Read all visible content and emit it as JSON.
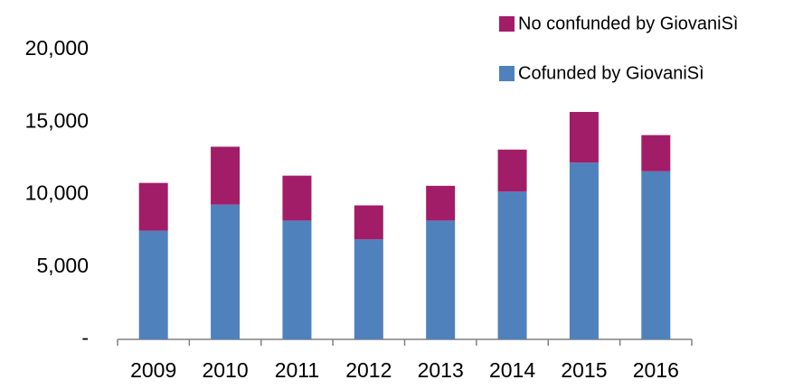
{
  "chart_data": {
    "type": "stacked_bar",
    "categories": [
      "2009",
      "2010",
      "2011",
      "2012",
      "2013",
      "2014",
      "2015",
      "2016"
    ],
    "series": [
      {
        "name": "Cofunded by GiovaniSì",
        "color": "#4f81bd",
        "values": [
          7500,
          9300,
          8200,
          6900,
          8200,
          10200,
          12200,
          11600
        ]
      },
      {
        "name": "No confunded by GiovaniSì",
        "color": "#a21d68",
        "values": [
          3300,
          4000,
          3100,
          2350,
          2400,
          2900,
          3500,
          2500
        ]
      }
    ],
    "ylim": [
      0,
      20000
    ],
    "yticks": [
      {
        "value": 0,
        "label": "-"
      },
      {
        "value": 5000,
        "label": "5,000"
      },
      {
        "value": 10000,
        "label": "10,000"
      },
      {
        "value": 15000,
        "label": "15,000"
      },
      {
        "value": 20000,
        "label": "20,000"
      }
    ],
    "legend": "top-right"
  }
}
